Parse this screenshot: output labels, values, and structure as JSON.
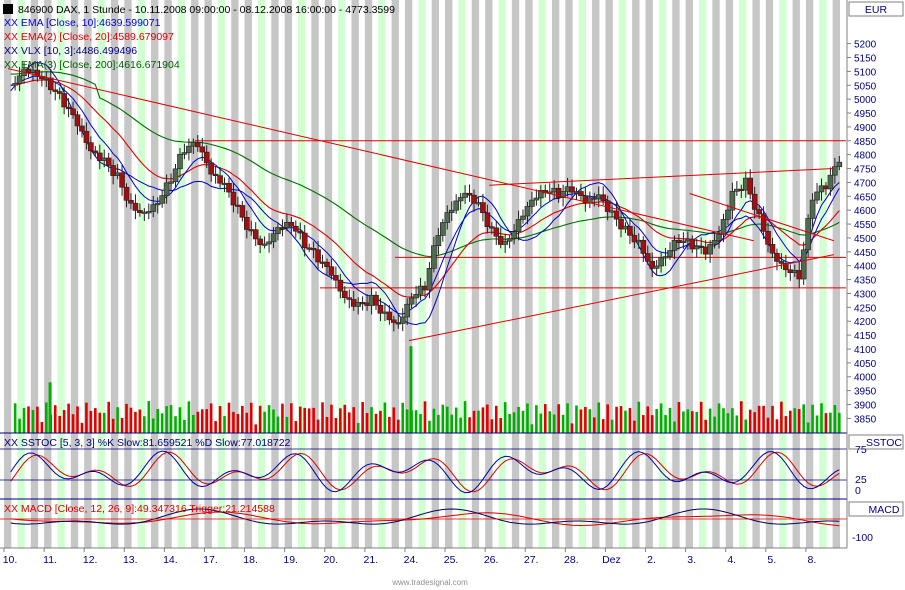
{
  "header": {
    "main_title": "846900  DAX, 1 Stunde - 10.11.2008 09:00:00 - 08.12.2008 16:00:00 - 4773.3599",
    "ema10": "XX EMA [Close, 10]:4639.599071",
    "ema20": "XX EMA(2) [Close, 20]:4589.679097",
    "vlx": "XX VLX [10, 3]:4486.499496",
    "ema200": "XX EMA(3) [Close, 200]:4616.671904",
    "currency": "EUR"
  },
  "stoch": {
    "legend": "XX SSTOC [5, 3, 3] %K Slow:81.659521 %D Slow:77.018722",
    "label": "SSTOC",
    "ticks": [
      "75",
      "25",
      "0"
    ]
  },
  "macd": {
    "legend": "XX MACD [Close, 12, 26, 9]:49.347316  Trigger:21.214588",
    "label": "MACD",
    "ticks": [
      "-100"
    ]
  },
  "xaxis": {
    "labels": [
      "10.",
      "11.",
      "12.",
      "13.",
      "14.",
      "17.",
      "18.",
      "19.",
      "20.",
      "21.",
      "24.",
      "25.",
      "26.",
      "27.",
      "28.",
      "Dez",
      "2.",
      "3.",
      "4.",
      "5.",
      "8."
    ]
  },
  "watermark": "www.tradesignal.com",
  "colors": {
    "up": "#4f6b4f",
    "down": "#a01010",
    "ema10": "#0000e0",
    "ema20": "#e00000",
    "ema200": "#007000",
    "vlx": "#0000c0",
    "band": "#ccffcc",
    "gray": "#c0c0c0",
    "volume_up": "#00b000",
    "volume_down": "#e00000",
    "hline": "#e00000",
    "frame": "#000080"
  },
  "chart_data": {
    "type": "candlestick",
    "instrument": "846900 DAX",
    "interval": "1 Stunde",
    "x_range": [
      "10.11.2008 09:00:00",
      "08.12.2008 16:00:00"
    ],
    "last_price": 4773.3599,
    "y_axis_ticks": [
      5200,
      5150,
      5100,
      5050,
      5000,
      4950,
      4900,
      4850,
      4800,
      4750,
      4700,
      4650,
      4600,
      4550,
      4500,
      4450,
      4400,
      4350,
      4300,
      4250,
      4200,
      4150,
      4100,
      4050,
      4000,
      3950,
      3900,
      3850
    ],
    "ylim": [
      3810,
      5230
    ],
    "horizontal_levels": [
      4850,
      4430,
      4320
    ],
    "trend_lines": [
      {
        "from": [
          "10.",
          5110
        ],
        "to": [
          "4.",
          4490
        ]
      },
      {
        "from": [
          "24.",
          4130
        ],
        "to": [
          "8.",
          4440
        ]
      },
      {
        "from": [
          "26.",
          4690
        ],
        "to": [
          "8.",
          4750
        ]
      },
      {
        "from": [
          "3.",
          4660
        ],
        "to": [
          "8.",
          4490
        ]
      }
    ],
    "price_path": [
      [
        "10.",
        5050
      ],
      [
        "10.",
        5120
      ],
      [
        "10.",
        5100
      ],
      [
        "11.",
        5050
      ],
      [
        "11.",
        4980
      ],
      [
        "11.",
        4900
      ],
      [
        "12.",
        4800
      ],
      [
        "12.",
        4770
      ],
      [
        "12.",
        4720
      ],
      [
        "13.",
        4620
      ],
      [
        "13.",
        4600
      ],
      [
        "13.",
        4640
      ],
      [
        "14.",
        4720
      ],
      [
        "14.",
        4820
      ],
      [
        "14.",
        4830
      ],
      [
        "17.",
        4720
      ],
      [
        "17.",
        4680
      ],
      [
        "17.",
        4600
      ],
      [
        "18.",
        4520
      ],
      [
        "18.",
        4480
      ],
      [
        "18.",
        4550
      ],
      [
        "19.",
        4560
      ],
      [
        "19.",
        4480
      ],
      [
        "19.",
        4420
      ],
      [
        "20.",
        4360
      ],
      [
        "20.",
        4270
      ],
      [
        "20.",
        4250
      ],
      [
        "21.",
        4280
      ],
      [
        "21.",
        4230
      ],
      [
        "21.",
        4200
      ],
      [
        "24.",
        4300
      ],
      [
        "24.",
        4330
      ],
      [
        "24.",
        4520
      ],
      [
        "25.",
        4600
      ],
      [
        "25.",
        4650
      ],
      [
        "25.",
        4610
      ],
      [
        "26.",
        4520
      ],
      [
        "26.",
        4480
      ],
      [
        "26.",
        4570
      ],
      [
        "27.",
        4650
      ],
      [
        "27.",
        4680
      ],
      [
        "27.",
        4660
      ],
      [
        "28.",
        4670
      ],
      [
        "28.",
        4620
      ],
      [
        "28.",
        4640
      ],
      [
        "Dez",
        4580
      ],
      [
        "Dez",
        4530
      ],
      [
        "Dez",
        4490
      ],
      [
        "2.",
        4400
      ],
      [
        "2.",
        4450
      ],
      [
        "2.",
        4500
      ],
      [
        "3.",
        4470
      ],
      [
        "3.",
        4440
      ],
      [
        "3.",
        4500
      ],
      [
        "4.",
        4650
      ],
      [
        "4.",
        4700
      ],
      [
        "4.",
        4580
      ],
      [
        "5.",
        4450
      ],
      [
        "5.",
        4400
      ],
      [
        "5.",
        4370
      ],
      [
        "8.",
        4650
      ],
      [
        "8.",
        4680
      ],
      [
        "8.",
        4773
      ]
    ],
    "volume_spikes": [
      [
        "11.",
        3980
      ],
      [
        "24.",
        4110
      ]
    ],
    "series": [
      {
        "name": "EMA [Close, 10]",
        "value": 4639.599071
      },
      {
        "name": "EMA(2) [Close, 20]",
        "value": 4589.679097
      },
      {
        "name": "VLX [10, 3]",
        "value": 4486.499496
      },
      {
        "name": "EMA(3) [Close, 200]",
        "value": 4616.671904
      },
      {
        "name": "SSTOC %K Slow",
        "value": 81.659521
      },
      {
        "name": "SSTOC %D Slow",
        "value": 77.018722
      },
      {
        "name": "MACD [Close, 12, 26, 9]",
        "value": 49.347316
      },
      {
        "name": "Trigger",
        "value": 21.214588
      }
    ]
  }
}
